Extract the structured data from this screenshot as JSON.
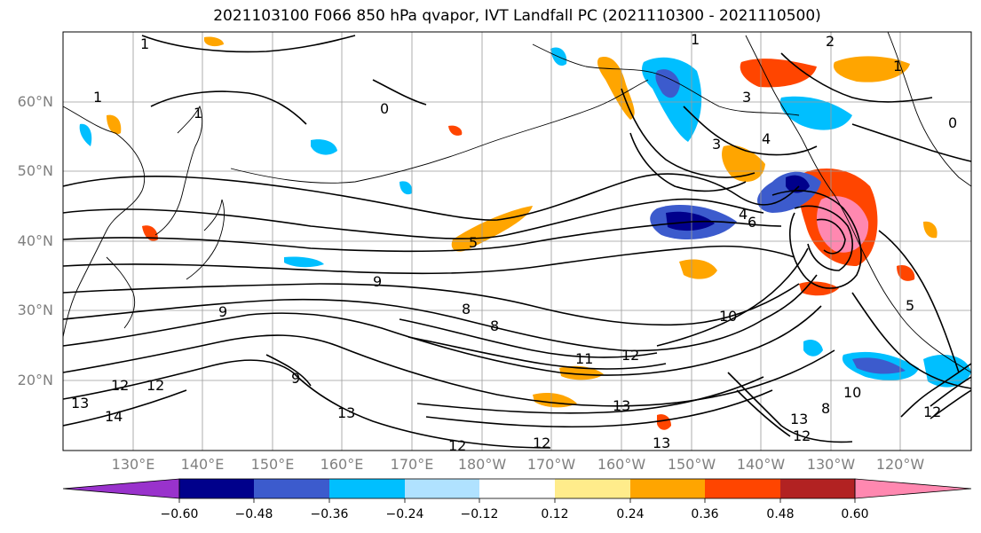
{
  "title": "2021103100 F066 850 hPa qvapor, IVT Landfall PC (2021110300 - 2021110500)",
  "lat_labels": [
    "60°N",
    "50°N",
    "40°N",
    "30°N",
    "20°N"
  ],
  "lon_labels": [
    "130°E",
    "140°E",
    "150°E",
    "160°E",
    "170°E",
    "180°W",
    "170°W",
    "160°W",
    "150°W",
    "140°W",
    "130°W",
    "120°W"
  ],
  "colorbar": {
    "tick_labels": [
      "−0.60",
      "−0.48",
      "−0.36",
      "−0.24",
      "−0.12",
      "0.12",
      "0.24",
      "0.36",
      "0.48",
      "0.60"
    ],
    "colors": [
      "#9932cc",
      "#00008b",
      "#3c5bcd",
      "#00bfff",
      "#b0e2ff",
      "#ffffff",
      "#ffec8b",
      "#ffa500",
      "#ff4500",
      "#b22222",
      "#ff88b0"
    ]
  },
  "contour_labels": [
    "1",
    "1",
    "1",
    "0",
    "1",
    "2",
    "1",
    "0",
    "3",
    "4",
    "3",
    "4",
    "5",
    "6",
    "9",
    "8",
    "8",
    "9",
    "9",
    "10",
    "11",
    "12",
    "13",
    "12",
    "12",
    "13",
    "13",
    "12",
    "12",
    "14",
    "13",
    "10",
    "8",
    "5",
    "12",
    "12",
    "13"
  ],
  "chart_data": {
    "type": "heatmap",
    "field": "850 hPa qvapor, IVT Landfall PC",
    "lat_range": [
      "10°N",
      "70°N"
    ],
    "lon_range": [
      "120°E",
      "110°W"
    ],
    "colorbar_levels": [
      -0.6,
      -0.48,
      -0.36,
      -0.24,
      -0.12,
      0.12,
      0.24,
      0.36,
      0.48,
      0.6
    ]
  }
}
